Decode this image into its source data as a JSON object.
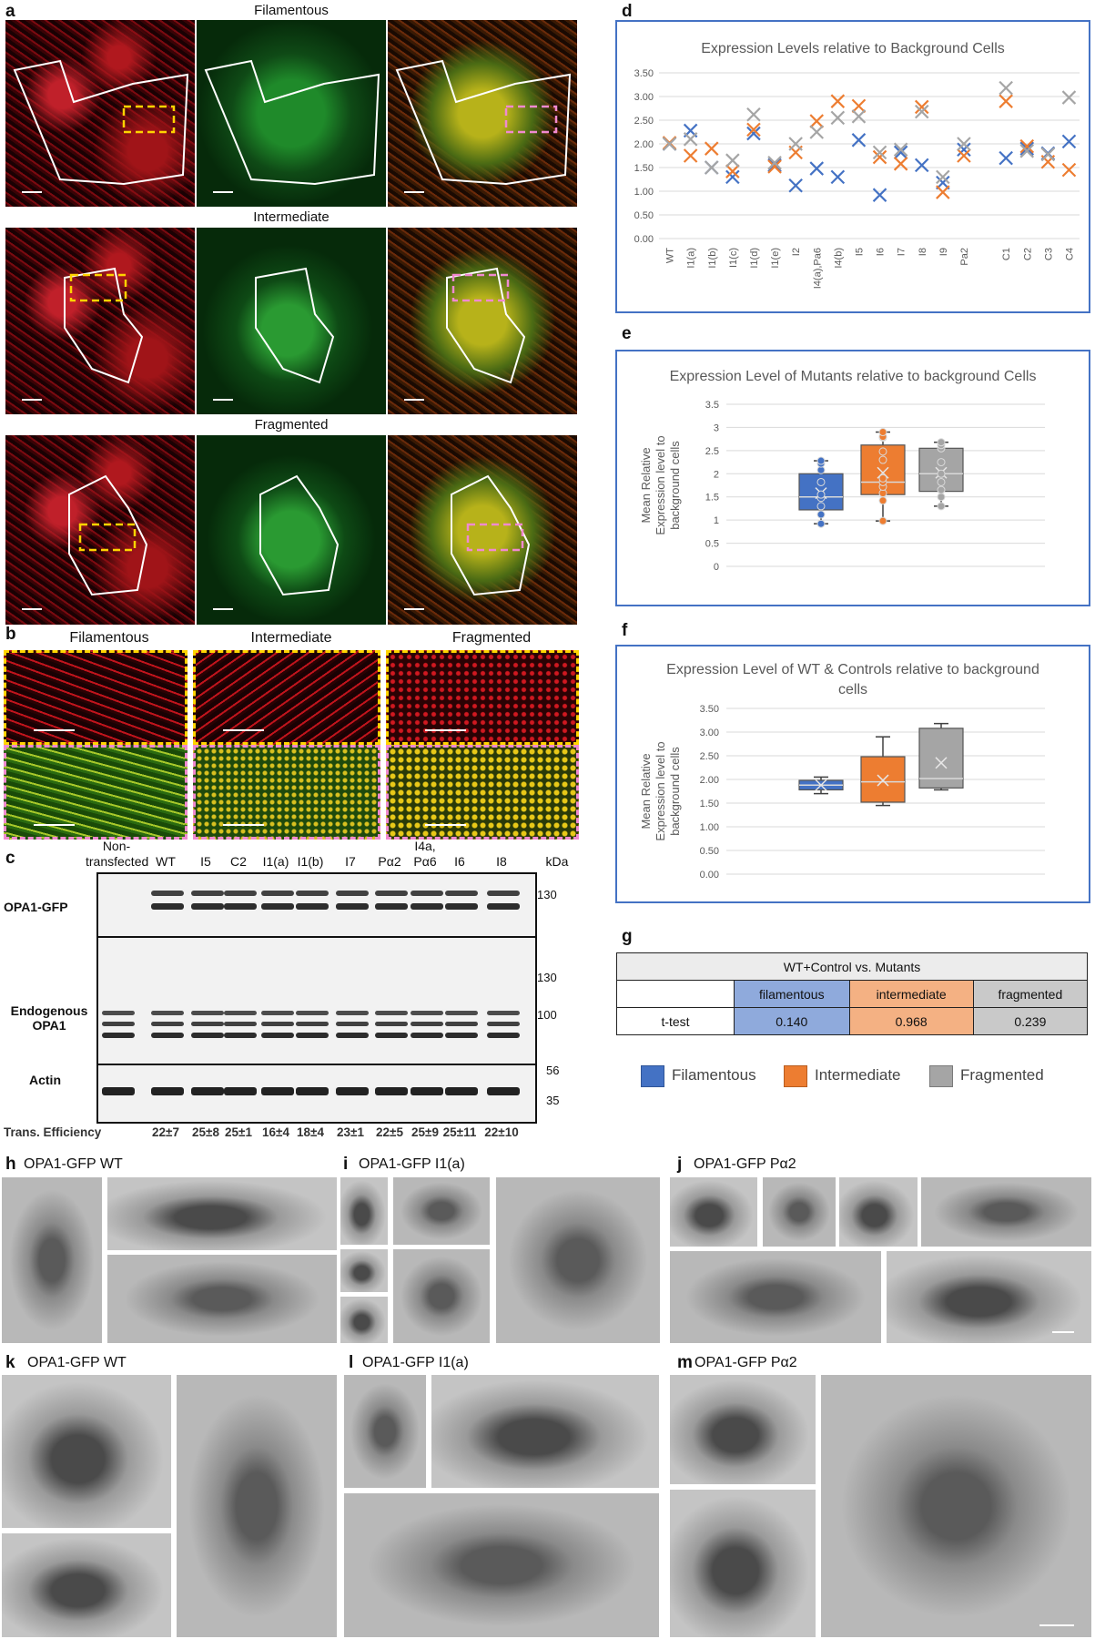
{
  "panels": {
    "a": {
      "label": "a",
      "rows": [
        "Filamentous",
        "Intermediate",
        "Fragmented"
      ]
    },
    "b": {
      "label": "b",
      "columns": [
        "Filamentous",
        "Intermediate",
        "Fragmented"
      ]
    },
    "c": {
      "label": "c",
      "lanes": [
        "Non-\ntransfected",
        "WT",
        "I5",
        "C2",
        "I1(a)",
        "I1(b)",
        "I7",
        "Pα2",
        "I4a,\nPα6",
        "I6",
        "I8"
      ],
      "kda_label": "kDa",
      "row_labels": [
        "OPA1-GFP",
        "Endogenous\nOPA1",
        "Actin"
      ],
      "markers_top": [
        "130"
      ],
      "markers_mid": [
        "130",
        "100"
      ],
      "markers_bot": [
        "56",
        "35"
      ],
      "efficiency_label": "Trans. Efficiency",
      "efficiency": [
        "22±7",
        "25±8",
        "25±1",
        "16±4",
        "18±4",
        "23±1",
        "22±5",
        "25±9",
        "25±11",
        "22±10"
      ]
    },
    "g": {
      "label": "g",
      "header": "WT+Control  vs. Mutants",
      "columns": [
        "filamentous",
        "intermediate",
        "fragmented"
      ],
      "row_label": "t-test",
      "values": [
        "0.140",
        "0.968",
        "0.239"
      ],
      "colors": [
        "#8faadc",
        "#f4b183",
        "#c9c9c9"
      ]
    },
    "legend": {
      "items": [
        {
          "label": "Filamentous",
          "color": "#4472c4"
        },
        {
          "label": "Intermediate",
          "color": "#ed7d31"
        },
        {
          "label": "Fragmented",
          "color": "#a5a5a5"
        }
      ]
    },
    "h": {
      "label": "h",
      "title": "OPA1-GFP WT"
    },
    "i": {
      "label": "i",
      "title": "OPA1-GFP I1(a)"
    },
    "j": {
      "label": "j",
      "title": "OPA1-GFP Pα2"
    },
    "k": {
      "label": "k",
      "title": "OPA1-GFP WT"
    },
    "l": {
      "label": "l",
      "title": "OPA1-GFP I1(a)"
    },
    "m": {
      "label": "m",
      "title": "OPA1-GFP Pα2"
    }
  },
  "chart_data": [
    {
      "panel": "d",
      "type": "scatter",
      "title": "Expression Levels relative to Background Cells",
      "categories": [
        "WT",
        "I1(a)",
        "I1(b)",
        "I1(c)",
        "I1(d)",
        "I1(e)",
        "I2",
        "I4(a),Pa6",
        "I4(b)",
        "I5",
        "I6",
        "I7",
        "I8",
        "I9",
        "Pa2",
        "",
        "C1",
        "C2",
        "C3",
        "C4"
      ],
      "yticks": [
        "0.00",
        "0.50",
        "1.00",
        "1.50",
        "2.00",
        "2.50",
        "3.00",
        "3.50"
      ],
      "ylim": [
        0,
        3.5
      ],
      "series": [
        {
          "color": "#4472c4",
          "values": [
            2.0,
            2.28,
            1.5,
            1.3,
            2.22,
            1.55,
            1.12,
            1.48,
            1.3,
            2.08,
            0.92,
            1.82,
            1.55,
            1.18,
            1.88,
            null,
            1.7,
            1.9,
            1.8,
            2.05
          ]
        },
        {
          "color": "#ed7d31",
          "values": [
            2.02,
            1.75,
            1.9,
            1.42,
            2.3,
            1.52,
            1.82,
            2.48,
            2.9,
            2.8,
            1.72,
            1.58,
            2.78,
            0.98,
            1.75,
            null,
            2.9,
            1.95,
            1.62,
            1.45
          ]
        },
        {
          "color": "#a5a5a5",
          "values": [
            2.0,
            2.1,
            1.5,
            1.65,
            2.62,
            1.6,
            2.0,
            2.25,
            2.55,
            2.58,
            1.82,
            1.88,
            2.68,
            1.3,
            2.0,
            null,
            3.18,
            1.85,
            1.78,
            2.98
          ]
        }
      ]
    },
    {
      "panel": "e",
      "type": "box",
      "title": "Expression Level of Mutants relative to background Cells",
      "ylabel": "Mean Relative Expression level to background cells",
      "yticks": [
        "0",
        "0.5",
        "1",
        "1.5",
        "2",
        "2.5",
        "3",
        "3.5"
      ],
      "ylim": [
        0,
        3.5
      ],
      "series": [
        {
          "color": "#4472c4",
          "min": 0.92,
          "q1": 1.22,
          "median": 1.5,
          "q3": 2.0,
          "max": 2.28,
          "mean": 1.58,
          "points": [
            0.92,
            1.12,
            1.3,
            1.48,
            1.55,
            1.82,
            2.08,
            2.22,
            2.28
          ]
        },
        {
          "color": "#ed7d31",
          "min": 0.98,
          "q1": 1.55,
          "median": 1.82,
          "q3": 2.62,
          "max": 2.9,
          "mean": 2.02,
          "points": [
            0.98,
            1.42,
            1.58,
            1.72,
            1.82,
            1.9,
            2.3,
            2.48,
            2.78,
            2.8,
            2.9
          ]
        },
        {
          "color": "#a5a5a5",
          "min": 1.3,
          "q1": 1.62,
          "median": 2.0,
          "q3": 2.55,
          "max": 2.68,
          "mean": 2.02,
          "points": [
            1.3,
            1.5,
            1.65,
            1.82,
            2.0,
            2.25,
            2.55,
            2.62,
            2.68
          ]
        }
      ]
    },
    {
      "panel": "f",
      "type": "box",
      "title": "Expression Level of WT & Controls relative to background cells",
      "ylabel": "Mean Relative Expression level to background cells",
      "yticks": [
        "0.00",
        "0.50",
        "1.00",
        "1.50",
        "2.00",
        "2.50",
        "3.00",
        "3.50"
      ],
      "ylim": [
        0,
        3.5
      ],
      "series": [
        {
          "color": "#4472c4",
          "min": 1.7,
          "q1": 1.78,
          "median": 1.88,
          "q3": 1.98,
          "max": 2.05,
          "mean": 1.88,
          "points": []
        },
        {
          "color": "#ed7d31",
          "min": 1.45,
          "q1": 1.52,
          "median": 1.95,
          "q3": 2.48,
          "max": 2.9,
          "mean": 1.98,
          "points": []
        },
        {
          "color": "#a5a5a5",
          "min": 1.78,
          "q1": 1.82,
          "median": 2.02,
          "q3": 3.08,
          "max": 3.18,
          "mean": 2.35,
          "points": []
        }
      ]
    }
  ]
}
